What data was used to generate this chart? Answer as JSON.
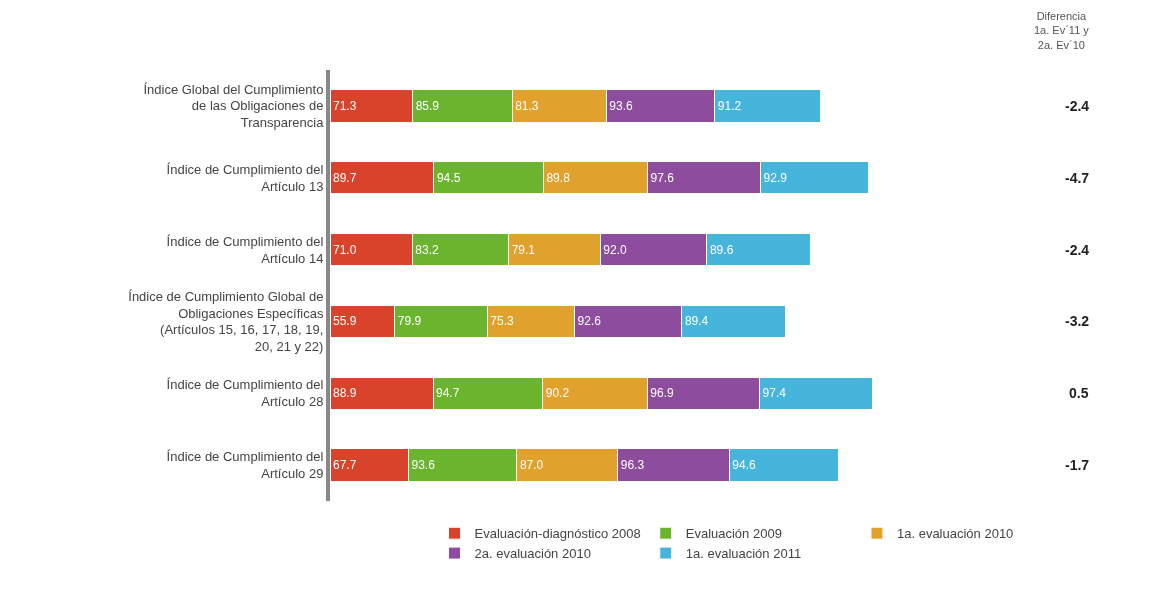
{
  "chart_data": {
    "type": "bar",
    "orientation": "horizontal",
    "stacked": true,
    "legend": "bottom",
    "tick_labels": "y",
    "categories": [
      "Índice Global del Cumplimiento de las Obligaciones de Transparencia",
      "Índice de Cumplimiento del Artículo 13",
      "Índice de Cumplimiento del Artículo 14",
      "Índice de Cumplimiento Global de Obligaciones Específicas (Artículos 15, 16, 17, 18, 19, 20, 21 y 22)",
      "Índice de Cumplimiento del Artículo 28",
      "Índice de Cumplimiento del Artículo 29"
    ],
    "series": [
      {
        "name": "Evaluación-diagnóstico 2008",
        "color": "#d9432b",
        "values": [
          71.3,
          89.7,
          71.0,
          55.9,
          88.9,
          67.7
        ],
        "value_labels": [
          "71.3",
          "89.7",
          "71.0",
          "55.9",
          "88.9",
          "67.7"
        ]
      },
      {
        "name": "Evaluación 2009",
        "color": "#6bb52e",
        "values": [
          85.9,
          94.5,
          83.2,
          79.9,
          94.7,
          93.6
        ],
        "value_labels": [
          "85.9",
          "94.5",
          "83.2",
          "79.9",
          "94.7",
          "93.6"
        ]
      },
      {
        "name": "1a. evaluación 2010",
        "color": "#e0a22c",
        "values": [
          81.3,
          89.8,
          79.1,
          75.3,
          90.2,
          87.0
        ],
        "value_labels": [
          "81.3",
          "89.8",
          "79.1",
          "75.3",
          "90.2",
          "87.0"
        ]
      },
      {
        "name": "2a. evaluación 2010",
        "color": "#8e4c9e",
        "values": [
          93.6,
          97.6,
          92.0,
          92.6,
          96.9,
          96.3
        ],
        "value_labels": [
          "93.6",
          "97.6",
          "92.0",
          "92.6",
          "96.9",
          "96.3"
        ]
      },
      {
        "name": "1a. evaluación 2011",
        "color": "#45b5dc",
        "values": [
          91.2,
          92.9,
          89.6,
          89.4,
          97.4,
          94.6
        ],
        "value_labels": [
          "91.2",
          "92.9",
          "89.6",
          "89.4",
          "97.4",
          "94.6"
        ]
      }
    ],
    "annotations": [
      "Diferencia 1a. Ev´11 y 2a. Ev´10",
      "-2.4",
      "-4.7",
      "-2.4",
      "-3.2",
      "0.5",
      "-1.7"
    ]
  }
}
